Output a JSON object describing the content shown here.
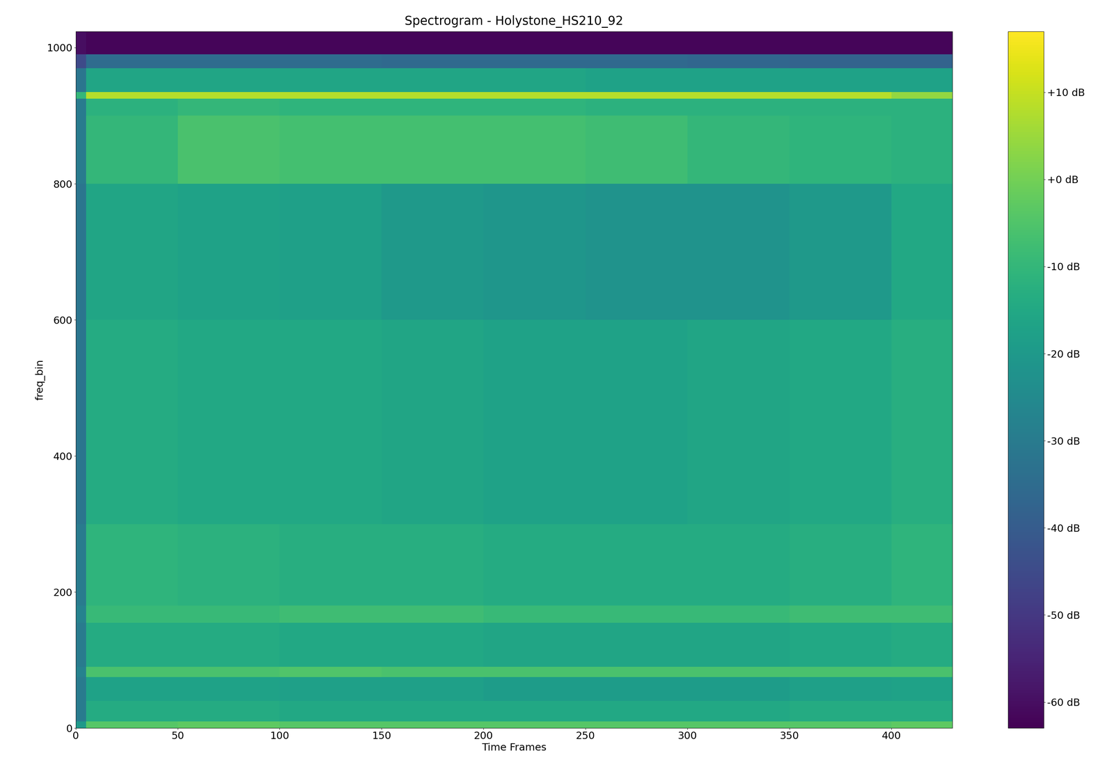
{
  "chart_data": {
    "type": "heatmap",
    "title": "Spectrogram - Holystone_HS210_92",
    "x_label": "Time Frames",
    "y_label": "freq_bin",
    "time_edges": [
      0,
      5,
      50,
      100,
      150,
      200,
      250,
      300,
      350,
      400,
      430
    ],
    "freq_edges": [
      0,
      10,
      40,
      75,
      90,
      155,
      180,
      300,
      600,
      800,
      900,
      925,
      935,
      970,
      990,
      1024
    ],
    "cells": [
      [
        -20,
        -4,
        -3,
        -4,
        -4,
        -4,
        -4,
        -4,
        -4,
        -3
      ],
      [
        -30,
        -14,
        -14,
        -15,
        -15,
        -15,
        -15,
        -15,
        -14,
        -14
      ],
      [
        -30,
        -17,
        -17,
        -18,
        -18,
        -19,
        -19,
        -19,
        -18,
        -17
      ],
      [
        -28,
        -6,
        -6,
        -5,
        -6,
        -6,
        -6,
        -6,
        -6,
        -6
      ],
      [
        -30,
        -14,
        -14,
        -15,
        -15,
        -16,
        -16,
        -16,
        -15,
        -14
      ],
      [
        -28,
        -9,
        -9,
        -8,
        -8,
        -9,
        -9,
        -9,
        -8,
        -8
      ],
      [
        -30,
        -11,
        -12,
        -13,
        -13,
        -14,
        -14,
        -14,
        -13,
        -11
      ],
      [
        -32,
        -14,
        -15,
        -15,
        -16,
        -17,
        -17,
        -16,
        -15,
        -13
      ],
      [
        -32,
        -16,
        -17,
        -18,
        -20,
        -21,
        -22,
        -22,
        -20,
        -15
      ],
      [
        -30,
        -10,
        -6,
        -7,
        -7,
        -7,
        -8,
        -10,
        -11,
        -12
      ],
      [
        -30,
        -12,
        -10,
        -11,
        -11,
        -11,
        -12,
        -12,
        -12,
        -12
      ],
      [
        -10,
        8,
        8,
        8,
        8,
        8,
        8,
        8,
        8,
        4
      ],
      [
        -32,
        -16,
        -16,
        -16,
        -16,
        -16,
        -17,
        -17,
        -17,
        -17
      ],
      [
        -45,
        -35,
        -35,
        -35,
        -36,
        -36,
        -36,
        -37,
        -38,
        -38
      ],
      [
        -60,
        -62,
        -62,
        -62,
        -62,
        -62,
        -62,
        -62,
        -62,
        -62
      ]
    ],
    "xlim": [
      0,
      430
    ],
    "ylim": [
      0,
      1024
    ],
    "xticks": [
      0,
      50,
      100,
      150,
      200,
      250,
      300,
      350,
      400
    ],
    "yticks": [
      0,
      200,
      400,
      600,
      800,
      1000
    ],
    "color_range": [
      -63,
      17
    ],
    "color_ticks": [
      {
        "value": 10,
        "label": "+10 dB"
      },
      {
        "value": 0,
        "label": "+0 dB"
      },
      {
        "value": -10,
        "label": "-10 dB"
      },
      {
        "value": -20,
        "label": "-20 dB"
      },
      {
        "value": -30,
        "label": "-30 dB"
      },
      {
        "value": -40,
        "label": "-40 dB"
      },
      {
        "value": -50,
        "label": "-50 dB"
      },
      {
        "value": -60,
        "label": "-60 dB"
      }
    ]
  }
}
